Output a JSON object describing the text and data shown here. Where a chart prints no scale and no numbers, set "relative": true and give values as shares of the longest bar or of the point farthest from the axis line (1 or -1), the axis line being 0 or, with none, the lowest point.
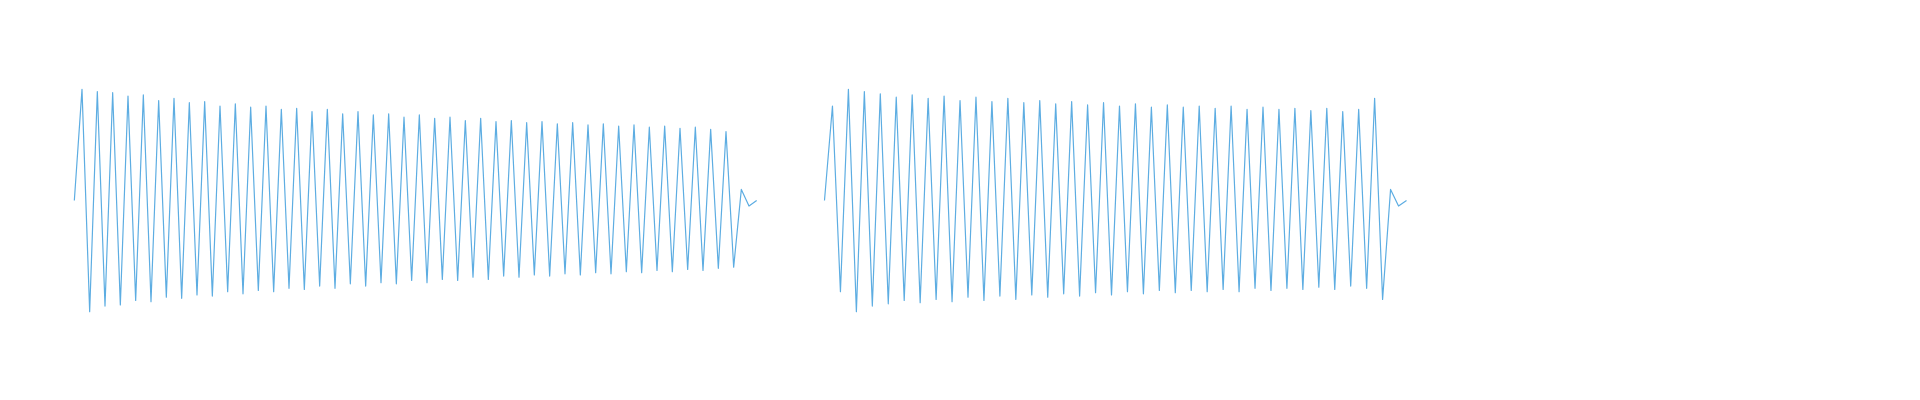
{
  "chart_data": [
    {
      "type": "line",
      "relative": true,
      "categories": [
        null,
        null,
        null,
        null,
        null,
        null,
        null,
        null,
        null,
        null,
        null,
        null,
        null,
        null,
        null,
        null,
        null,
        null,
        null,
        null,
        null,
        null,
        null,
        null,
        null,
        null,
        null,
        null,
        null,
        null,
        null,
        null,
        null,
        null,
        null,
        null,
        null,
        null,
        null,
        null,
        null,
        null,
        null,
        null,
        null,
        null,
        null,
        null,
        null,
        null,
        null,
        null,
        null,
        null,
        null,
        null,
        null,
        null,
        null,
        null,
        null,
        null,
        null,
        null,
        null,
        null,
        null,
        null,
        null,
        null,
        null,
        null,
        null,
        null,
        null,
        null,
        null,
        null,
        null,
        null,
        null,
        null,
        null,
        null,
        null,
        null,
        null,
        null,
        null,
        null
      ],
      "series": [
        {
          "color": "#5dade2",
          "values": [
            0.5,
            1,
            0,
            0.99,
            0.025,
            0.985,
            0.03,
            0.97,
            0.05,
            0.975,
            0.045,
            0.95,
            0.065,
            0.96,
            0.06,
            0.94,
            0.075,
            0.945,
            0.07,
            0.925,
            0.09,
            0.935,
            0.08,
            0.92,
            0.095,
            0.925,
            0.09,
            0.91,
            0.105,
            0.915,
            0.1,
            0.9,
            0.115,
            0.91,
            0.105,
            0.89,
            0.125,
            0.9,
            0.115,
            0.885,
            0.13,
            0.89,
            0.125,
            0.875,
            0.14,
            0.885,
            0.13,
            0.87,
            0.145,
            0.875,
            0.14,
            0.86,
            0.155,
            0.87,
            0.145,
            0.855,
            0.16,
            0.86,
            0.155,
            0.85,
            0.165,
            0.855,
            0.16,
            0.845,
            0.17,
            0.85,
            0.165,
            0.84,
            0.175,
            0.845,
            0.17,
            0.835,
            0.18,
            0.84,
            0.175,
            0.83,
            0.185,
            0.835,
            0.18,
            0.825,
            0.19,
            0.83,
            0.185,
            0.82,
            0.195,
            0.81,
            0.2,
            0.55,
            0.475,
            0.5
          ]
        }
      ]
    },
    {
      "type": "line",
      "relative": true,
      "categories": [
        null,
        null,
        null,
        null,
        null,
        null,
        null,
        null,
        null,
        null,
        null,
        null,
        null,
        null,
        null,
        null,
        null,
        null,
        null,
        null,
        null,
        null,
        null,
        null,
        null,
        null,
        null,
        null,
        null,
        null,
        null,
        null,
        null,
        null,
        null,
        null,
        null,
        null,
        null,
        null,
        null,
        null,
        null,
        null,
        null,
        null,
        null,
        null,
        null,
        null,
        null,
        null,
        null,
        null,
        null,
        null,
        null,
        null,
        null,
        null,
        null,
        null,
        null,
        null,
        null,
        null,
        null,
        null,
        null,
        null,
        null,
        null,
        null,
        null
      ],
      "series": [
        {
          "color": "#5dade2",
          "values": [
            0.5,
            0.925,
            0.09,
            1,
            0,
            0.99,
            0.025,
            0.98,
            0.035,
            0.965,
            0.05,
            0.975,
            0.04,
            0.96,
            0.055,
            0.97,
            0.045,
            0.95,
            0.065,
            0.965,
            0.05,
            0.945,
            0.07,
            0.96,
            0.055,
            0.94,
            0.075,
            0.95,
            0.065,
            0.935,
            0.08,
            0.945,
            0.07,
            0.93,
            0.085,
            0.94,
            0.075,
            0.925,
            0.09,
            0.935,
            0.08,
            0.92,
            0.095,
            0.93,
            0.085,
            0.92,
            0.095,
            0.925,
            0.09,
            0.915,
            0.1,
            0.925,
            0.09,
            0.91,
            0.105,
            0.92,
            0.095,
            0.91,
            0.105,
            0.915,
            0.1,
            0.905,
            0.11,
            0.915,
            0.1,
            0.9,
            0.115,
            0.91,
            0.105,
            0.96,
            0.055,
            0.55,
            0.475,
            0.5
          ]
        }
      ]
    }
  ]
}
